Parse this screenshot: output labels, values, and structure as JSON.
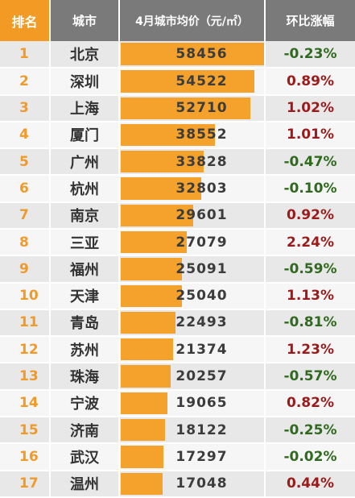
{
  "header": {
    "rank": "排名",
    "city": "城市",
    "price": "4月城市均价（元/㎡）",
    "change": "环比涨幅"
  },
  "colors": {
    "rank_header_bg": "#f39a24",
    "header_bg": "#7a7a7a",
    "bar": "#f5a22d",
    "rank_text": "#f09a2a",
    "positive_change": "#9b1b1b",
    "negative_change": "#2f6a1e"
  },
  "chart_data": {
    "type": "table",
    "columns": [
      "排名",
      "城市",
      "4月城市均价（元/㎡）",
      "环比涨幅"
    ],
    "xlim": [
      0,
      58456
    ],
    "rows": [
      {
        "rank": "1",
        "city": "北京",
        "price": 58456,
        "change": "-0.23%"
      },
      {
        "rank": "2",
        "city": "深圳",
        "price": 54522,
        "change": "0.89%"
      },
      {
        "rank": "3",
        "city": "上海",
        "price": 52710,
        "change": "1.02%"
      },
      {
        "rank": "4",
        "city": "厦门",
        "price": 38552,
        "change": "1.01%"
      },
      {
        "rank": "5",
        "city": "广州",
        "price": 33828,
        "change": "-0.47%"
      },
      {
        "rank": "6",
        "city": "杭州",
        "price": 32803,
        "change": "-0.10%"
      },
      {
        "rank": "7",
        "city": "南京",
        "price": 29601,
        "change": "0.92%"
      },
      {
        "rank": "8",
        "city": "三亚",
        "price": 27079,
        "change": "2.24%"
      },
      {
        "rank": "9",
        "city": "福州",
        "price": 25091,
        "change": "-0.59%"
      },
      {
        "rank": "10",
        "city": "天津",
        "price": 25040,
        "change": "1.13%"
      },
      {
        "rank": "11",
        "city": "青岛",
        "price": 22493,
        "change": "-0.81%"
      },
      {
        "rank": "12",
        "city": "苏州",
        "price": 21374,
        "change": "1.23%"
      },
      {
        "rank": "13",
        "city": "珠海",
        "price": 20257,
        "change": "-0.57%"
      },
      {
        "rank": "14",
        "city": "宁波",
        "price": 19065,
        "change": "0.82%"
      },
      {
        "rank": "15",
        "city": "济南",
        "price": 18122,
        "change": "-0.25%"
      },
      {
        "rank": "16",
        "city": "武汉",
        "price": 17297,
        "change": "-0.02%"
      },
      {
        "rank": "17",
        "city": "温州",
        "price": 17048,
        "change": "0.44%"
      }
    ]
  }
}
